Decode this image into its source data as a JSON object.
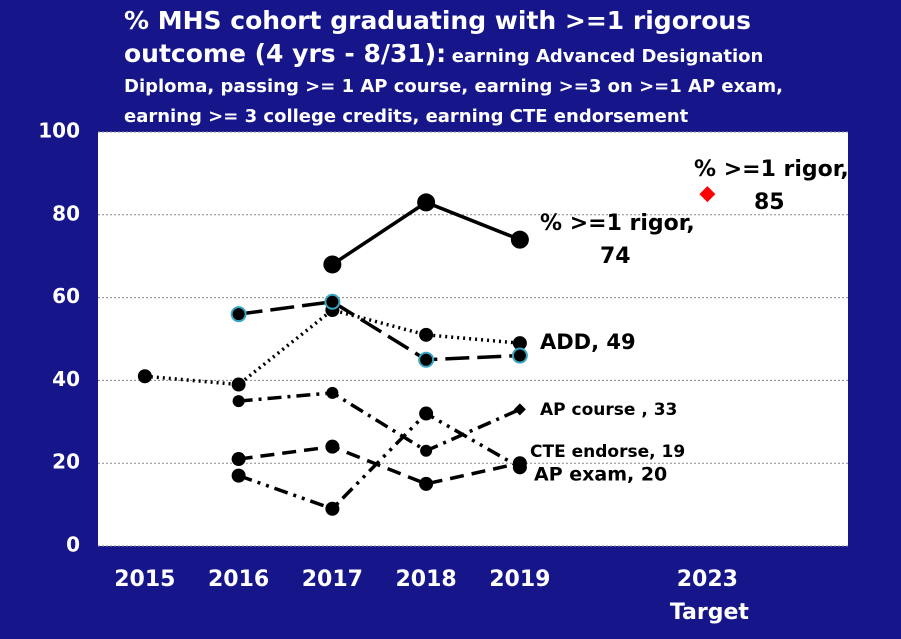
{
  "chart_data": {
    "type": "line",
    "title": "% MHS cohort graduating with >=1 rigorous outcome (4 yrs - 8/31):",
    "subtitle": "earning Advanced Designation Diploma,  passing >= 1 AP course, earning >=3 on >=1 AP exam, earning >= 3 college credits, earning CTE endorsement",
    "categories": [
      "2015",
      "2016",
      "2017",
      "2018",
      "2019",
      null,
      "2023\nTarget",
      null
    ],
    "ylim": [
      0,
      100
    ],
    "yticks": [
      0,
      20,
      40,
      60,
      80,
      100
    ],
    "grid": true,
    "series": [
      {
        "color": "#000000",
        "dash": "solid",
        "marker": "circle",
        "marker_size": 9,
        "values": [
          null,
          null,
          68,
          83,
          74,
          null,
          null,
          null
        ],
        "value_labels": [
          null,
          null,
          null,
          null,
          "% >=1 rigor,\n74",
          null,
          null,
          null
        ]
      },
      {
        "color": "#ff0000",
        "dash": "none",
        "marker": "diamond",
        "marker_size": 8,
        "values": [
          null,
          null,
          null,
          null,
          null,
          null,
          85,
          null
        ],
        "value_labels": [
          null,
          null,
          null,
          null,
          null,
          null,
          "% >=1 rigor,\n85",
          null
        ]
      },
      {
        "color": "#000000",
        "dash": "dot",
        "marker": "circle",
        "marker_size": 7,
        "values": [
          41,
          39,
          57,
          51,
          49,
          null,
          null,
          null
        ],
        "value_labels": [
          null,
          null,
          null,
          null,
          "ADD, 49",
          null,
          null,
          null
        ]
      },
      {
        "color": "#000000",
        "dash": "longdash",
        "marker": "circle",
        "marker_size": 7,
        "marker_edge": "#3aa6c4",
        "values": [
          null,
          56,
          59,
          45,
          46,
          null,
          null,
          null
        ]
      },
      {
        "color": "#000000",
        "dash": "dashdot",
        "marker": "circle",
        "marker_size": 6,
        "end_marker": "diamond",
        "values": [
          null,
          35,
          37,
          23,
          33,
          null,
          null,
          null
        ],
        "value_labels": [
          null,
          null,
          null,
          null,
          "AP course , 33",
          null,
          null,
          null
        ]
      },
      {
        "color": "#000000",
        "dash": "dashdotdot",
        "marker": "circle",
        "marker_size": 7,
        "values": [
          null,
          17,
          9,
          32,
          19,
          null,
          null,
          null
        ],
        "value_labels": [
          null,
          null,
          null,
          null,
          "CTE endorse, 19",
          null,
          null,
          null
        ]
      },
      {
        "color": "#000000",
        "dash": "dash",
        "marker": "circle",
        "marker_size": 7,
        "values": [
          null,
          21,
          24,
          15,
          20,
          null,
          null,
          null
        ],
        "value_labels": [
          null,
          null,
          null,
          null,
          "AP exam, 20",
          null,
          null,
          null
        ]
      }
    ]
  }
}
